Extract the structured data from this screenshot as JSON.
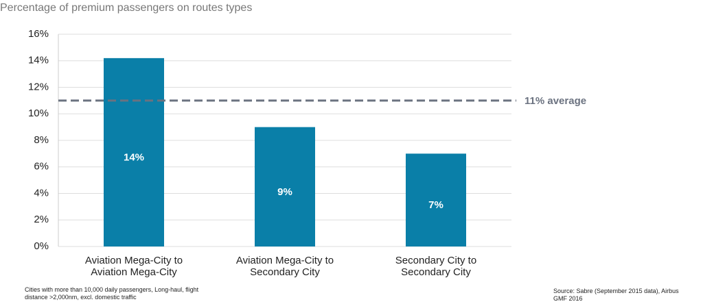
{
  "chart_data": {
    "type": "bar",
    "title": "Percentage of premium passengers on routes types",
    "categories": [
      "Aviation Mega-City to Aviation Mega-City",
      "Aviation Mega-City to Secondary City",
      "Secondary City to Secondary City"
    ],
    "values": [
      14.2,
      9,
      7
    ],
    "value_labels": [
      "14%",
      "9%",
      "7%"
    ],
    "color": "#0a7fa8",
    "ylim": [
      0,
      16
    ],
    "yticks": [
      {
        "value": 0,
        "label": "0%"
      },
      {
        "value": 2,
        "label": "2%"
      },
      {
        "value": 4,
        "label": "4%"
      },
      {
        "value": 6,
        "label": "6%"
      },
      {
        "value": 8,
        "label": "8%"
      },
      {
        "value": 10,
        "label": "10%"
      },
      {
        "value": 12,
        "label": "12%"
      },
      {
        "value": 14,
        "label": "14%"
      },
      {
        "value": 16,
        "label": "16%"
      }
    ],
    "grid": true,
    "average": 11,
    "average_label": "11% average",
    "footnote": "Cities with more than 10,000 daily passengers, Long-haul, flight distance >2,000nm, excl. domestic traffic",
    "source": "Source: Sabre (September 2015 data), Airbus GMF 2016"
  }
}
